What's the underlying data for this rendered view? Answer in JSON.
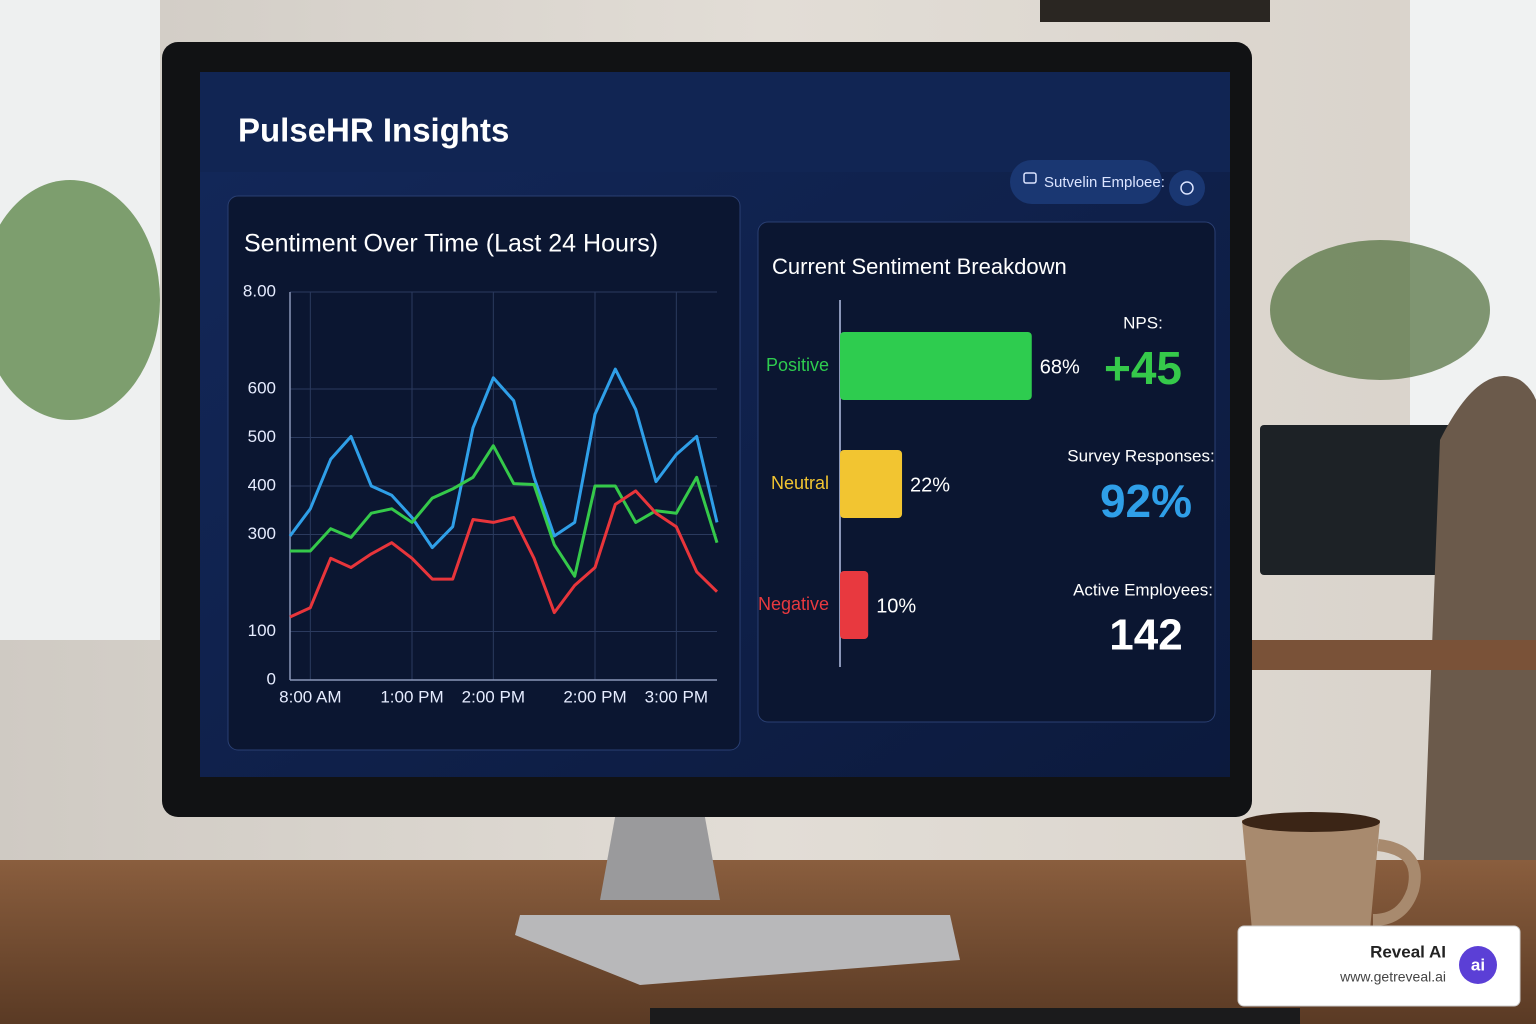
{
  "header": {
    "title": "PulseHR Insights",
    "button": "Sutvelin Emploee:"
  },
  "chart_data": [
    {
      "type": "line",
      "title": "Sentiment Over Time (Last 24 Hours)",
      "categories": [
        null,
        "8:00 AM",
        null,
        null,
        null,
        null,
        "1:00 PM",
        null,
        null,
        null,
        "2:00 PM",
        null,
        null,
        null,
        null,
        "2:00 PM",
        null,
        null,
        null,
        "3:00 PM",
        null,
        null
      ],
      "series": [
        {
          "color": "#2f9fe8",
          "values": [
            297,
            353,
            455,
            502,
            400,
            381,
            335,
            273,
            316,
            520,
            623,
            576,
            418,
            297,
            325,
            548,
            641,
            558,
            409,
            465,
            502,
            325
          ]
        },
        {
          "color": "#35c94a",
          "values": [
            266,
            266,
            312,
            294,
            344,
            353,
            325,
            375,
            394,
            418,
            483,
            405,
            403,
            279,
            214,
            400,
            400,
            325,
            349,
            344,
            418,
            283
          ]
        },
        {
          "color": "#e8353b",
          "values": [
            130,
            149,
            251,
            232,
            260,
            283,
            251,
            208,
            208,
            331,
            325,
            335,
            251,
            139,
            195,
            232,
            362,
            390,
            344,
            316,
            223,
            182
          ]
        }
      ],
      "ylim": [
        0,
        800
      ],
      "yticks": [
        0,
        100,
        300,
        400,
        500,
        600,
        {
          "value": 800,
          "label": "8.00"
        }
      ],
      "grid": true
    },
    {
      "type": "hbar",
      "title": "Current Sentiment Breakdown",
      "categories": [
        "Positive",
        "Neutral",
        "Negative"
      ],
      "values": [
        68,
        22,
        10
      ],
      "value_labels": [
        "68%",
        "22%",
        "10%"
      ],
      "colors": [
        "#2ecc4f",
        "#f2c531",
        "#e8393f"
      ]
    }
  ],
  "stats": [
    {
      "label": "NPS:",
      "value": "+45",
      "color": "#35c94a"
    },
    {
      "label": "Survey Responses:",
      "value": "92%",
      "color": "#2f9fe8"
    },
    {
      "label": "Active Employees:",
      "value": "142",
      "color": "#ffffff"
    }
  ],
  "badge": {
    "name": "Reveal AI",
    "url": "www.getreveal.ai",
    "logo": "ai"
  }
}
